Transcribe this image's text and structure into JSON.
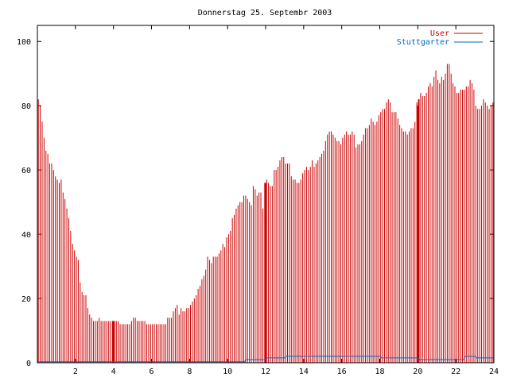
{
  "chart_data": {
    "type": "bar",
    "title": "Donnerstag 25. Septembr 2003",
    "xlabel": "",
    "ylabel": "",
    "xlim": [
      0,
      24
    ],
    "ylim": [
      0,
      105
    ],
    "xticks": [
      2,
      4,
      6,
      8,
      10,
      12,
      14,
      16,
      18,
      20,
      22,
      24
    ],
    "yticks": [
      0,
      20,
      40,
      60,
      80,
      100
    ],
    "grid": false,
    "legend_position": "top-right",
    "series": [
      {
        "name": "User",
        "color": "#cc0000",
        "style": "impulses",
        "points": [
          [
            0.05,
            82
          ],
          [
            0.15,
            80
          ],
          [
            0.25,
            75
          ],
          [
            0.35,
            70
          ],
          [
            0.45,
            66
          ],
          [
            0.55,
            65
          ],
          [
            0.65,
            62
          ],
          [
            0.75,
            62
          ],
          [
            0.85,
            60
          ],
          [
            0.95,
            58
          ],
          [
            1.05,
            57
          ],
          [
            1.15,
            56
          ],
          [
            1.25,
            57
          ],
          [
            1.35,
            53
          ],
          [
            1.45,
            51
          ],
          [
            1.55,
            48
          ],
          [
            1.65,
            45
          ],
          [
            1.75,
            41
          ],
          [
            1.85,
            37
          ],
          [
            1.95,
            35
          ],
          [
            2.05,
            33
          ],
          [
            2.15,
            32
          ],
          [
            2.25,
            25
          ],
          [
            2.35,
            22
          ],
          [
            2.45,
            21
          ],
          [
            2.55,
            21
          ],
          [
            2.65,
            17
          ],
          [
            2.75,
            15
          ],
          [
            2.85,
            14
          ],
          [
            2.95,
            13
          ],
          [
            3.05,
            13
          ],
          [
            3.15,
            13
          ],
          [
            3.25,
            14
          ],
          [
            3.35,
            13
          ],
          [
            3.45,
            13
          ],
          [
            3.55,
            13
          ],
          [
            3.65,
            13
          ],
          [
            3.75,
            13
          ],
          [
            3.85,
            13
          ],
          [
            3.95,
            13
          ],
          [
            4.05,
            13
          ],
          [
            4.15,
            13
          ],
          [
            4.25,
            13
          ],
          [
            4.35,
            12
          ],
          [
            4.45,
            12
          ],
          [
            4.55,
            12
          ],
          [
            4.65,
            12
          ],
          [
            4.75,
            12
          ],
          [
            4.85,
            12
          ],
          [
            4.95,
            13
          ],
          [
            5.05,
            14
          ],
          [
            5.15,
            14
          ],
          [
            5.25,
            13
          ],
          [
            5.35,
            13
          ],
          [
            5.45,
            13
          ],
          [
            5.55,
            13
          ],
          [
            5.65,
            13
          ],
          [
            5.75,
            12
          ],
          [
            5.85,
            12
          ],
          [
            5.95,
            12
          ],
          [
            6.05,
            12
          ],
          [
            6.15,
            12
          ],
          [
            6.25,
            12
          ],
          [
            6.35,
            12
          ],
          [
            6.45,
            12
          ],
          [
            6.55,
            12
          ],
          [
            6.65,
            12
          ],
          [
            6.75,
            12
          ],
          [
            6.85,
            14
          ],
          [
            6.95,
            14
          ],
          [
            7.05,
            14
          ],
          [
            7.15,
            16
          ],
          [
            7.25,
            17
          ],
          [
            7.35,
            18
          ],
          [
            7.45,
            15
          ],
          [
            7.55,
            17
          ],
          [
            7.65,
            16
          ],
          [
            7.75,
            16
          ],
          [
            7.85,
            17
          ],
          [
            7.95,
            17
          ],
          [
            8.05,
            18
          ],
          [
            8.15,
            19
          ],
          [
            8.25,
            20
          ],
          [
            8.35,
            21
          ],
          [
            8.45,
            23
          ],
          [
            8.55,
            24
          ],
          [
            8.65,
            26
          ],
          [
            8.75,
            27
          ],
          [
            8.85,
            29
          ],
          [
            8.95,
            33
          ],
          [
            9.05,
            32
          ],
          [
            9.15,
            31
          ],
          [
            9.25,
            33
          ],
          [
            9.35,
            33
          ],
          [
            9.45,
            33
          ],
          [
            9.55,
            34
          ],
          [
            9.65,
            35
          ],
          [
            9.75,
            37
          ],
          [
            9.85,
            36
          ],
          [
            9.95,
            39
          ],
          [
            10.05,
            40
          ],
          [
            10.15,
            41
          ],
          [
            10.25,
            45
          ],
          [
            10.35,
            46
          ],
          [
            10.45,
            48
          ],
          [
            10.55,
            49
          ],
          [
            10.65,
            50
          ],
          [
            10.75,
            50
          ],
          [
            10.85,
            52
          ],
          [
            10.95,
            52
          ],
          [
            11.05,
            51
          ],
          [
            11.15,
            50
          ],
          [
            11.25,
            49
          ],
          [
            11.35,
            55
          ],
          [
            11.45,
            54
          ],
          [
            11.55,
            52
          ],
          [
            11.65,
            53
          ],
          [
            11.75,
            53
          ],
          [
            11.85,
            48
          ],
          [
            11.95,
            56
          ],
          [
            12.05,
            57
          ],
          [
            12.15,
            56
          ],
          [
            12.25,
            55
          ],
          [
            12.35,
            55
          ],
          [
            12.45,
            60
          ],
          [
            12.55,
            60
          ],
          [
            12.65,
            61
          ],
          [
            12.75,
            63
          ],
          [
            12.85,
            64
          ],
          [
            12.95,
            64
          ],
          [
            13.05,
            62
          ],
          [
            13.15,
            62
          ],
          [
            13.25,
            62
          ],
          [
            13.35,
            58
          ],
          [
            13.45,
            57
          ],
          [
            13.55,
            57
          ],
          [
            13.65,
            56
          ],
          [
            13.75,
            56
          ],
          [
            13.85,
            57
          ],
          [
            13.95,
            59
          ],
          [
            14.05,
            60
          ],
          [
            14.15,
            61
          ],
          [
            14.25,
            60
          ],
          [
            14.35,
            61
          ],
          [
            14.45,
            63
          ],
          [
            14.55,
            61
          ],
          [
            14.65,
            62
          ],
          [
            14.75,
            63
          ],
          [
            14.85,
            64
          ],
          [
            14.95,
            65
          ],
          [
            15.05,
            66
          ],
          [
            15.15,
            69
          ],
          [
            15.25,
            71
          ],
          [
            15.35,
            72
          ],
          [
            15.45,
            72
          ],
          [
            15.55,
            71
          ],
          [
            15.65,
            70
          ],
          [
            15.75,
            69
          ],
          [
            15.85,
            69
          ],
          [
            15.95,
            68
          ],
          [
            16.05,
            70
          ],
          [
            16.15,
            71
          ],
          [
            16.25,
            72
          ],
          [
            16.35,
            71
          ],
          [
            16.45,
            71
          ],
          [
            16.55,
            72
          ],
          [
            16.65,
            71
          ],
          [
            16.75,
            67
          ],
          [
            16.85,
            68
          ],
          [
            16.95,
            68
          ],
          [
            17.05,
            69
          ],
          [
            17.15,
            71
          ],
          [
            17.25,
            73
          ],
          [
            17.35,
            73
          ],
          [
            17.45,
            74
          ],
          [
            17.55,
            76
          ],
          [
            17.65,
            75
          ],
          [
            17.75,
            74
          ],
          [
            17.85,
            75
          ],
          [
            17.95,
            77
          ],
          [
            18.05,
            78
          ],
          [
            18.15,
            79
          ],
          [
            18.25,
            79
          ],
          [
            18.35,
            81
          ],
          [
            18.45,
            82
          ],
          [
            18.55,
            81
          ],
          [
            18.65,
            78
          ],
          [
            18.75,
            78
          ],
          [
            18.85,
            78
          ],
          [
            18.95,
            76
          ],
          [
            19.05,
            74
          ],
          [
            19.15,
            73
          ],
          [
            19.25,
            72
          ],
          [
            19.35,
            72
          ],
          [
            19.45,
            71
          ],
          [
            19.55,
            72
          ],
          [
            19.65,
            73
          ],
          [
            19.75,
            73
          ],
          [
            19.85,
            75
          ],
          [
            19.95,
            81
          ],
          [
            20.05,
            82
          ],
          [
            20.15,
            84
          ],
          [
            20.25,
            83
          ],
          [
            20.35,
            83
          ],
          [
            20.45,
            84
          ],
          [
            20.55,
            86
          ],
          [
            20.65,
            87
          ],
          [
            20.75,
            86
          ],
          [
            20.85,
            89
          ],
          [
            20.95,
            91
          ],
          [
            21.05,
            88
          ],
          [
            21.15,
            87
          ],
          [
            21.25,
            89
          ],
          [
            21.35,
            88
          ],
          [
            21.45,
            90
          ],
          [
            21.55,
            93
          ],
          [
            21.65,
            93
          ],
          [
            21.75,
            90
          ],
          [
            21.85,
            87
          ],
          [
            21.95,
            86
          ],
          [
            22.05,
            84
          ],
          [
            22.15,
            84
          ],
          [
            22.25,
            85
          ],
          [
            22.35,
            85
          ],
          [
            22.45,
            85
          ],
          [
            22.55,
            86
          ],
          [
            22.65,
            86
          ],
          [
            22.75,
            88
          ],
          [
            22.85,
            87
          ],
          [
            22.95,
            85
          ],
          [
            23.05,
            80
          ],
          [
            23.15,
            79
          ],
          [
            23.25,
            79
          ],
          [
            23.35,
            80
          ],
          [
            23.45,
            82
          ],
          [
            23.55,
            81
          ],
          [
            23.65,
            80
          ],
          [
            23.75,
            79
          ],
          [
            23.85,
            80
          ],
          [
            23.95,
            81
          ]
        ]
      },
      {
        "name": "Stuttgarter",
        "color": "#0066cc",
        "style": "lines",
        "points": [
          [
            0,
            0.3
          ],
          [
            10.9,
            0.3
          ],
          [
            10.95,
            1
          ],
          [
            12,
            1
          ],
          [
            12.1,
            1.5
          ],
          [
            13,
            1.5
          ],
          [
            13.1,
            2
          ],
          [
            18,
            2
          ],
          [
            18.1,
            1.5
          ],
          [
            20,
            1.5
          ],
          [
            20.1,
            1
          ],
          [
            22.4,
            1
          ],
          [
            22.5,
            2
          ],
          [
            23,
            2
          ],
          [
            23.1,
            1.5
          ],
          [
            24,
            1.5
          ]
        ]
      },
      {
        "name": "",
        "color": "#cc0000",
        "style": "markers",
        "points": [
          [
            4,
            13
          ],
          [
            12,
            56
          ],
          [
            20,
            80
          ],
          [
            20.05,
            82
          ]
        ]
      }
    ]
  }
}
